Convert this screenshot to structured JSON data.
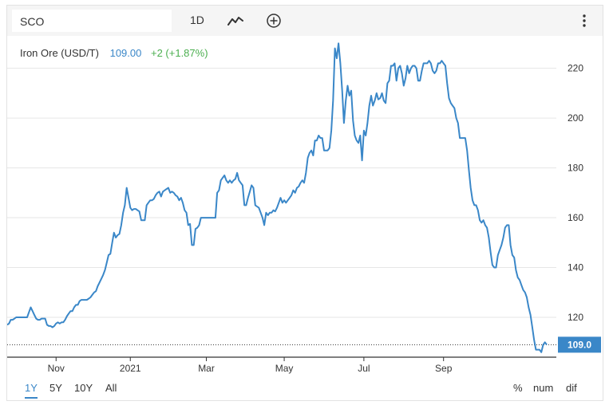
{
  "toolbar": {
    "symbol": "SCO",
    "interval": "1D",
    "chart_type_icon": "line-chart-icon",
    "compare_icon": "plus-circle-icon",
    "menu_icon": "kebab-menu-icon"
  },
  "legend": {
    "name": "Iron Ore (USD/T)",
    "value": "109.00",
    "change": "+2 (+1.87%)",
    "value_color": "#3a87c8",
    "change_color": "#4caf50"
  },
  "last_price_label": "109.0",
  "ranges": [
    {
      "label": "1Y",
      "active": true
    },
    {
      "label": "5Y",
      "active": false
    },
    {
      "label": "10Y",
      "active": false
    },
    {
      "label": "All",
      "active": false
    }
  ],
  "options": [
    "%",
    "num",
    "dif"
  ],
  "chart_data": {
    "type": "line",
    "title": "",
    "xlabel": "",
    "ylabel": "",
    "ylim": [
      104,
      233
    ],
    "yticks": [
      120,
      140,
      160,
      180,
      200,
      220
    ],
    "x_tick_labels": [
      "Nov",
      "2021",
      "Mar",
      "May",
      "Jul",
      "Sep"
    ],
    "grid": true,
    "line_color": "#3a87c8",
    "last_value": 109.0,
    "series": [
      {
        "values": [
          117,
          117.5,
          119,
          119,
          119.5,
          120,
          120,
          120,
          120,
          120,
          120,
          120,
          122,
          124,
          122.5,
          121,
          119.5,
          119,
          119,
          119.5,
          119.5,
          119.5,
          117,
          116.5,
          116.5,
          116,
          116.5,
          117.5,
          118,
          117.5,
          118,
          118,
          119,
          120.5,
          121.5,
          122.5,
          122.5,
          124,
          125,
          125,
          126.5,
          127,
          127,
          127,
          127,
          127.5,
          128,
          129,
          130,
          130.5,
          132.5,
          134,
          135.5,
          137,
          139,
          142,
          145,
          145.5,
          150,
          154,
          152,
          153,
          153.5,
          157,
          162,
          165,
          172,
          168,
          164,
          163,
          163.5,
          163.5,
          163,
          162.5,
          159,
          159,
          159,
          165,
          166,
          167,
          167,
          167.5,
          169,
          170,
          170.5,
          168.5,
          170.5,
          171,
          171.5,
          172,
          170,
          170.5,
          170,
          169,
          168.5,
          167,
          168,
          166,
          163,
          162,
          157,
          157.5,
          149,
          149,
          155.5,
          156,
          157,
          160,
          160,
          160,
          160,
          160,
          160,
          160,
          160,
          160,
          170,
          171,
          175,
          176,
          177,
          175,
          174,
          175,
          174,
          175,
          175.5,
          178,
          175,
          174,
          173,
          165,
          165,
          168,
          170.5,
          173,
          172,
          165,
          164.5,
          164,
          162,
          160,
          157,
          162,
          161,
          162,
          162,
          163,
          162.5,
          164,
          166,
          168,
          166,
          167,
          166,
          167,
          168,
          169,
          171,
          170,
          172,
          172.5,
          174,
          175,
          174,
          178,
          184,
          186,
          187,
          185,
          191,
          191,
          193,
          192,
          192,
          187,
          187,
          187,
          188,
          195,
          207,
          228,
          224,
          230,
          222,
          211,
          198,
          207,
          213,
          209,
          211,
          199,
          193,
          191,
          190,
          193,
          183,
          195,
          193,
          198,
          205,
          209,
          205,
          207,
          210,
          207.5,
          208,
          210,
          207,
          206,
          214,
          215,
          221,
          221,
          222,
          215,
          220,
          221,
          218,
          213,
          216,
          221,
          218,
          220,
          221,
          221,
          220,
          215,
          215,
          219,
          222,
          222,
          222,
          223,
          222,
          219,
          218,
          219,
          222,
          222,
          223,
          222,
          221,
          214,
          208,
          206,
          205,
          204,
          200,
          198,
          192,
          192,
          192,
          192,
          187,
          179,
          172,
          167,
          165,
          165,
          163,
          159,
          158,
          159,
          157,
          156,
          152,
          146,
          141,
          140,
          140,
          145,
          147,
          149,
          152,
          156,
          157,
          157,
          149,
          145,
          144,
          139,
          136,
          135,
          133,
          131,
          130,
          128,
          124,
          121,
          116,
          111,
          107,
          107,
          107,
          106,
          109,
          110,
          109
        ]
      }
    ]
  }
}
